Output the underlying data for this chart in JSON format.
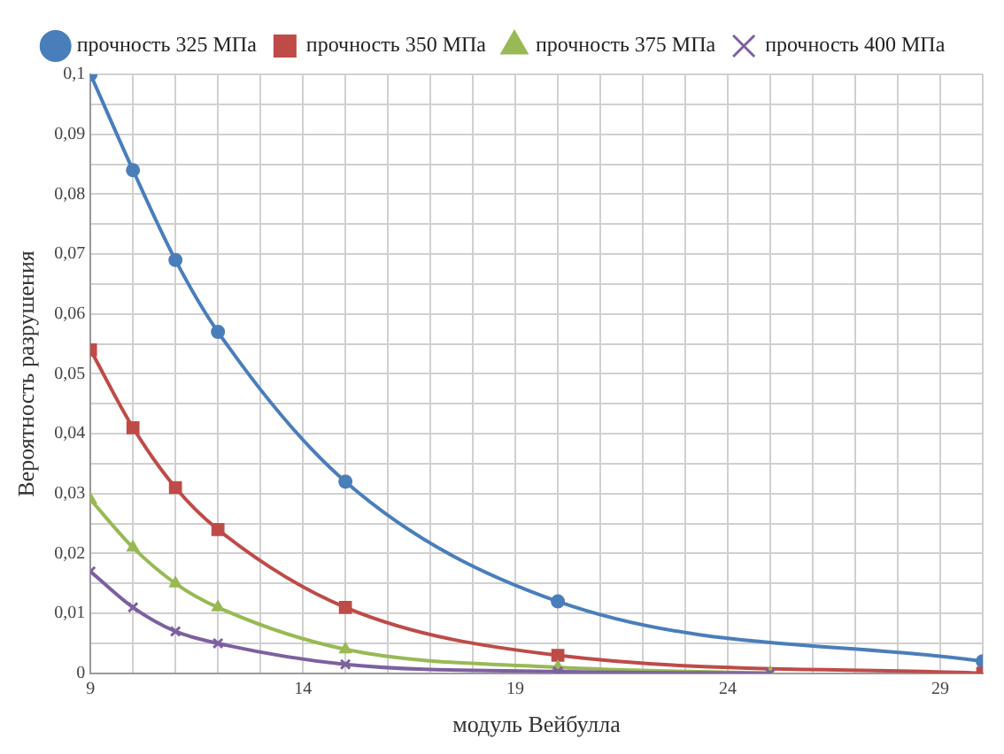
{
  "chart_data": {
    "type": "line",
    "xlabel": "модуль Вейбулла",
    "ylabel": "Вероятность разрушения",
    "xlim": [
      9,
      30
    ],
    "xticks": [
      9,
      {
        "value": 10,
        "label": null
      },
      {
        "value": 11,
        "label": null
      },
      {
        "value": 12,
        "label": null
      },
      {
        "value": 13,
        "label": null
      },
      14,
      {
        "value": 15,
        "label": null
      },
      {
        "value": 16,
        "label": null
      },
      {
        "value": 17,
        "label": null
      },
      {
        "value": 18,
        "label": null
      },
      19,
      {
        "value": 20,
        "label": null
      },
      {
        "value": 21,
        "label": null
      },
      {
        "value": 22,
        "label": null
      },
      {
        "value": 23,
        "label": null
      },
      24,
      {
        "value": 25,
        "label": null
      },
      {
        "value": 26,
        "label": null
      },
      {
        "value": 27,
        "label": null
      },
      {
        "value": 28,
        "label": null
      },
      29,
      {
        "value": 30,
        "label": null
      }
    ],
    "ylim": [
      0,
      0.1
    ],
    "yticks": [
      0,
      {
        "value": 0.005,
        "label": null
      },
      {
        "value": 0.01,
        "label": "0,01"
      },
      {
        "value": 0.015,
        "label": null
      },
      {
        "value": 0.02,
        "label": "0,02"
      },
      {
        "value": 0.025,
        "label": null
      },
      {
        "value": 0.03,
        "label": "0,03"
      },
      {
        "value": 0.035,
        "label": null
      },
      {
        "value": 0.04,
        "label": "0,04"
      },
      {
        "value": 0.045,
        "label": null
      },
      {
        "value": 0.05,
        "label": "0,05"
      },
      {
        "value": 0.055,
        "label": null
      },
      {
        "value": 0.06,
        "label": "0,06"
      },
      {
        "value": 0.065,
        "label": null
      },
      {
        "value": 0.07,
        "label": "0,07"
      },
      {
        "value": 0.075,
        "label": null
      },
      {
        "value": 0.08,
        "label": "0,08"
      },
      {
        "value": 0.085,
        "label": null
      },
      {
        "value": 0.09,
        "label": "0,09"
      },
      {
        "value": 0.095,
        "label": null
      },
      {
        "value": 0.1,
        "label": "0,1"
      }
    ],
    "grid": true,
    "legend": "top",
    "line_style": "solid",
    "series": [
      {
        "name": "прочность 325 МПа",
        "color": "#4a7ebb",
        "marker": "circle",
        "x": [
          9,
          10,
          11,
          12,
          15,
          20,
          30
        ],
        "values": [
          0.1,
          0.084,
          0.069,
          0.057,
          0.032,
          0.012,
          0.002
        ]
      },
      {
        "name": "прочность 350 МПа",
        "color": "#be4b48",
        "marker": "square",
        "x": [
          9,
          10,
          11,
          12,
          15,
          20,
          30
        ],
        "values": [
          0.054,
          0.041,
          0.031,
          0.024,
          0.011,
          0.003,
          0
        ]
      },
      {
        "name": "прочность 375 МПа",
        "color": "#98b954",
        "marker": "triangle",
        "x": [
          9,
          10,
          11,
          12,
          15,
          20,
          25
        ],
        "values": [
          0.029,
          0.021,
          0.015,
          0.011,
          0.004,
          0.001,
          0
        ]
      },
      {
        "name": "прочность 400 МПа",
        "color": "#7d60a0",
        "marker": "cross",
        "x": [
          9,
          10,
          11,
          12,
          15,
          20,
          25
        ],
        "values": [
          0.017,
          0.011,
          0.007,
          0.005,
          0.0015,
          0.0003,
          0
        ]
      }
    ]
  }
}
